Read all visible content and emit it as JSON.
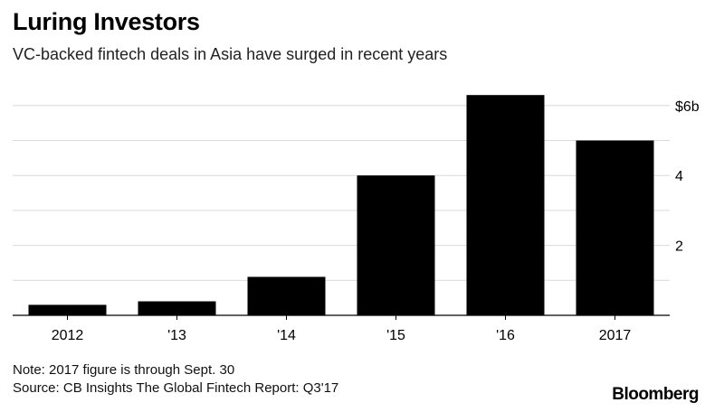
{
  "header": {
    "title": "Luring Investors",
    "subtitle": "VC-backed fintech deals in Asia have surged in recent years"
  },
  "footer": {
    "note": "Note: 2017 figure is through Sept. 30",
    "source": "Source: CB Insights The Global Fintech Report: Q3'17",
    "brand": "Bloomberg"
  },
  "colors": {
    "bar": "#000000",
    "grid": "#d9d9d9",
    "axis": "#000000"
  },
  "chart_data": {
    "type": "bar",
    "title": "Luring Investors",
    "subtitle": "VC-backed fintech deals in Asia have surged in recent years",
    "categories": [
      "2012",
      "'13",
      "'14",
      "'15",
      "'16",
      "2017"
    ],
    "values": [
      0.3,
      0.4,
      1.1,
      4.0,
      6.3,
      5.0
    ],
    "unit": "billion USD",
    "ylim": [
      0,
      6.4
    ],
    "y_ticks": [
      {
        "value": 2,
        "label": "2"
      },
      {
        "value": 4,
        "label": "4"
      },
      {
        "value": 6,
        "label": "$6b"
      }
    ],
    "y_gridlines": [
      1,
      2,
      3,
      4,
      5,
      6
    ],
    "y_axis_side": "right",
    "grid": true,
    "xlabel": "",
    "ylabel": ""
  }
}
